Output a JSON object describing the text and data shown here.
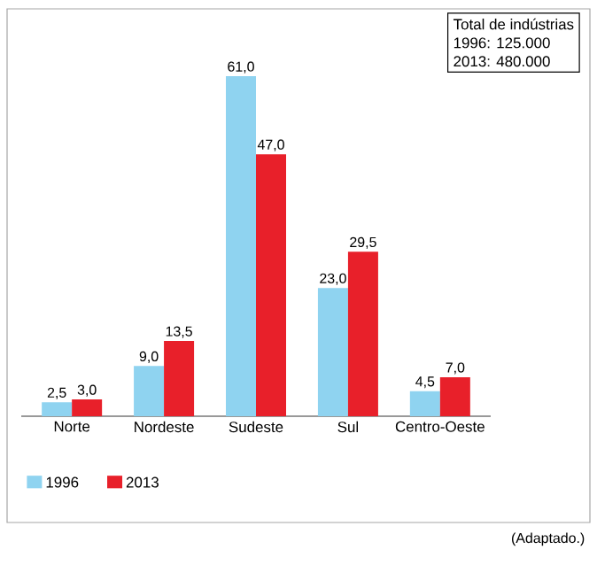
{
  "chart_data": {
    "type": "bar",
    "categories": [
      "Norte",
      "Nordeste",
      "Sudeste",
      "Sul",
      "Centro-Oeste"
    ],
    "series": [
      {
        "name": "1996",
        "color": "#8fd3f0",
        "values": [
          2.5,
          9.0,
          61.0,
          23.0,
          4.5
        ],
        "value_labels": [
          "2,5",
          "9,0",
          "61,0",
          "23,0",
          "4,5"
        ]
      },
      {
        "name": "2013",
        "color": "#e8202a",
        "values": [
          3.0,
          13.5,
          47.0,
          29.5,
          7.0
        ],
        "value_labels": [
          "3,0",
          "13,5",
          "47,0",
          "29,5",
          "7,0"
        ]
      }
    ],
    "annotations": [
      "Total de indústrias",
      "1996: 125.000",
      "2013: 480.000",
      "(Adaptado.)"
    ],
    "legend": "bottom left"
  }
}
